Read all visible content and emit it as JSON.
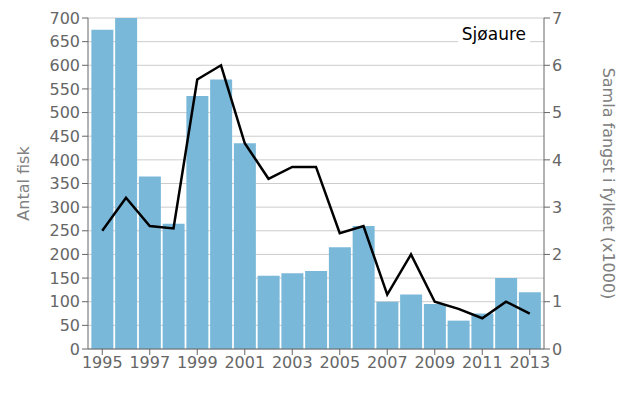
{
  "chart_data": {
    "type": "bar",
    "x": [
      1995,
      1996,
      1997,
      1998,
      1999,
      2000,
      2001,
      2002,
      2003,
      2004,
      2005,
      2006,
      2007,
      2008,
      2009,
      2010,
      2011,
      2012,
      2013
    ],
    "series": [
      {
        "type": "bar",
        "color": "#7ab8d9",
        "values": [
          675,
          700,
          365,
          265,
          535,
          570,
          435,
          155,
          160,
          165,
          215,
          260,
          100,
          115,
          95,
          60,
          75,
          150,
          120
        ]
      },
      {
        "type": "line",
        "axis": "y2",
        "color": "#000000",
        "values": [
          2.5,
          3.2,
          2.6,
          2.55,
          5.7,
          6.0,
          4.35,
          3.6,
          3.85,
          3.85,
          2.45,
          2.6,
          1.15,
          2.0,
          1.0,
          0.85,
          0.65,
          1.0,
          0.75
        ]
      }
    ],
    "ylabel": "Antal fisk",
    "y2label": "Samla fangst i fylket (x1000)",
    "xlim": [
      1994.4,
      2013.6
    ],
    "xticks": [
      1995,
      1997,
      1999,
      2001,
      2003,
      2005,
      2007,
      2009,
      2011,
      2013
    ],
    "ylim": [
      0,
      700
    ],
    "yticks": [
      0,
      50,
      100,
      150,
      200,
      250,
      300,
      350,
      400,
      450,
      500,
      550,
      600,
      650,
      700
    ],
    "y2lim": [
      0,
      7
    ],
    "y2ticks": [
      0,
      1,
      2,
      3,
      4,
      5,
      6,
      7
    ],
    "grid": true,
    "annotation": "Sjøaure"
  }
}
